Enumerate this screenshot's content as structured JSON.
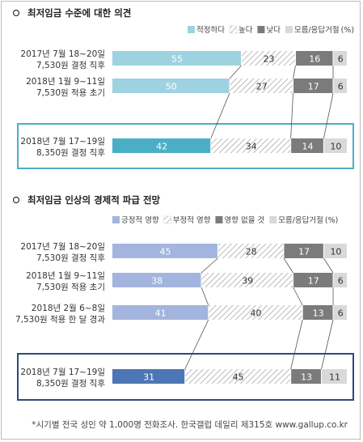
{
  "chart_data": [
    {
      "type": "bar",
      "stacked": "horizontal",
      "title": "최저임금 수준에 대한 의견",
      "unit_note": "(%)",
      "categories": [
        [
          "2017년 7월 18~20일",
          "7,530원 결정 직후"
        ],
        [
          "2018년 1월 9~11일",
          "7,530원 적용 초기"
        ],
        [
          "2018년 7월 17~19일",
          "8,350원 결정 직후"
        ]
      ],
      "series": [
        {
          "name": "적정하다",
          "values": [
            55,
            50,
            42
          ],
          "color": "#9fd2e0",
          "highlight_color": "#4aafc6"
        },
        {
          "name": "높다",
          "values": [
            23,
            27,
            34
          ],
          "color": "hatch"
        },
        {
          "name": "낮다",
          "values": [
            16,
            17,
            14
          ],
          "color": "#7b7b7b"
        },
        {
          "name": "모름/응답거절",
          "values": [
            6,
            6,
            10
          ],
          "color": "#d9d9d9"
        }
      ],
      "legend": "top-right",
      "highlight_row": 2,
      "highlight_color": "#4aafc6"
    },
    {
      "type": "bar",
      "stacked": "horizontal",
      "title": "최저임금 인상의 경제적 파급 전망",
      "unit_note": "(%)",
      "categories": [
        [
          "2017년 7월 18~20일",
          "7,530원 결정 직후"
        ],
        [
          "2018년 1월 9~11일",
          "7,530원 적용 초기"
        ],
        [
          "2018년 2월 6~8일",
          "7,530원 적용 한 달 경과"
        ],
        [
          "2018년 7월 17~19일",
          "8,350원 결정 직후"
        ]
      ],
      "series": [
        {
          "name": "긍정적 영향",
          "values": [
            45,
            38,
            41,
            31
          ],
          "color": "#a3b5de",
          "highlight_color": "#4e76b6"
        },
        {
          "name": "부정적 영향",
          "values": [
            28,
            39,
            40,
            45
          ],
          "color": "hatch"
        },
        {
          "name": "영향 없을 것",
          "values": [
            17,
            17,
            13,
            13
          ],
          "color": "#7b7b7b"
        },
        {
          "name": "모름/응답거절",
          "values": [
            10,
            6,
            6,
            11
          ],
          "color": "#d9d9d9"
        }
      ],
      "legend": "top-right",
      "highlight_row": 3,
      "highlight_color": "#2e4a7a"
    }
  ],
  "footnote": "*시기별 전국 성인 약 1,000명 전화조사. 한국갤럽 데일리 제315호 www.gallup.co.kr"
}
